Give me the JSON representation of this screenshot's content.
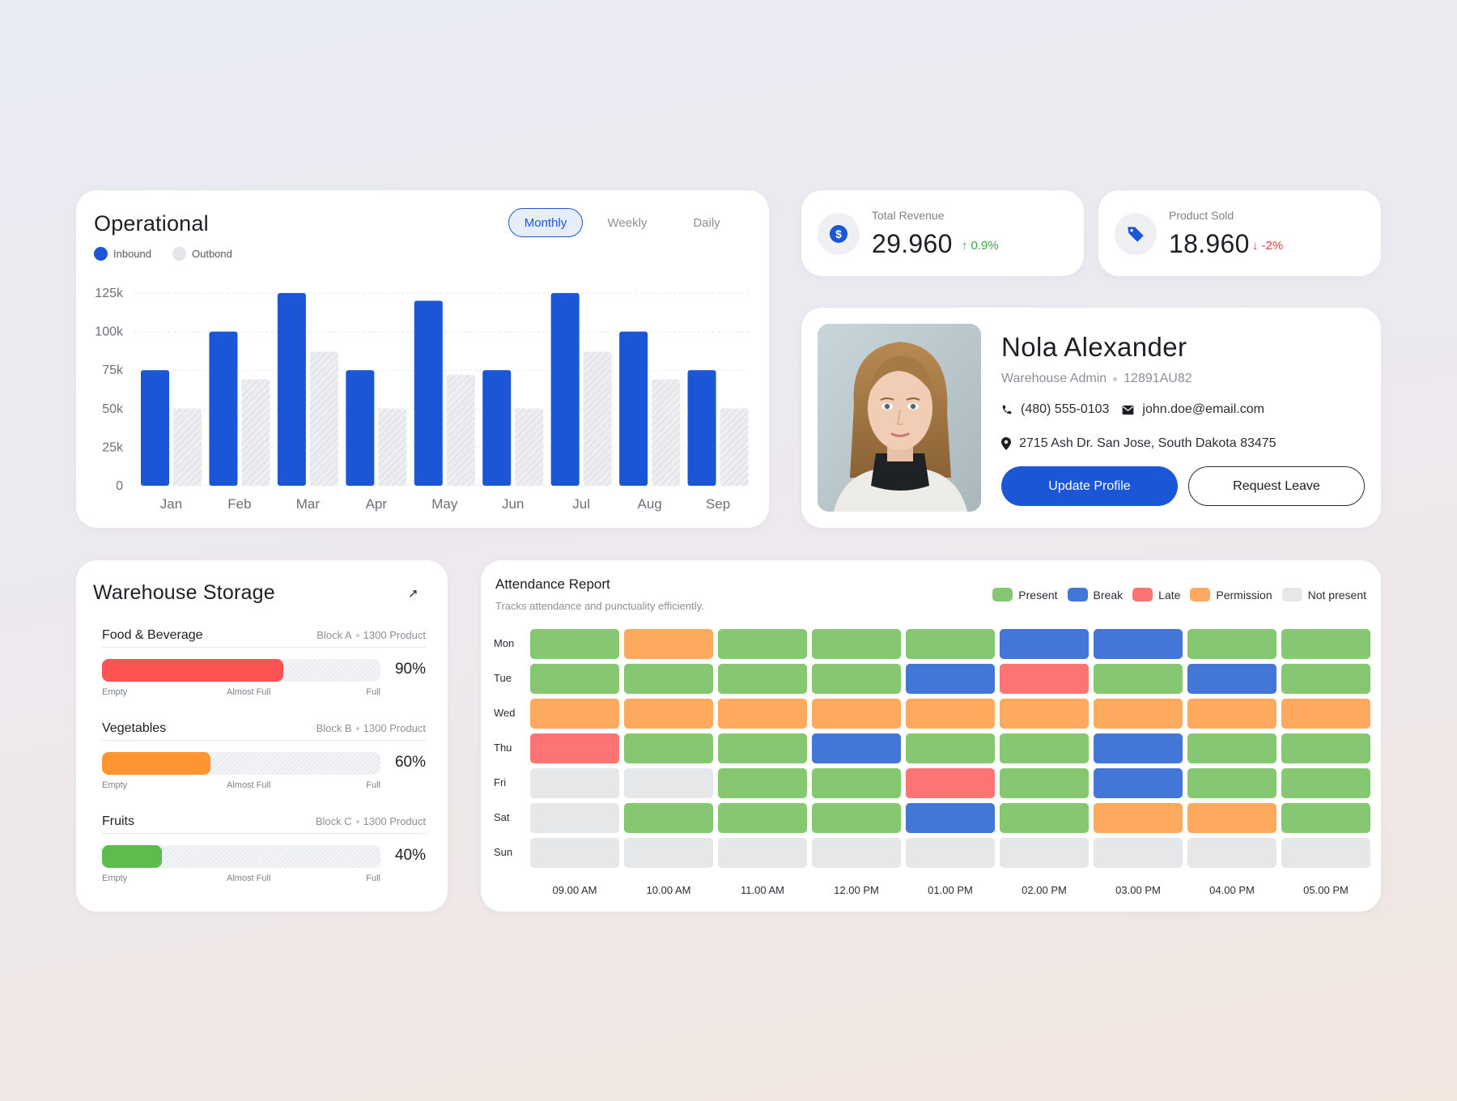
{
  "operational": {
    "title": "Operational",
    "legend": [
      {
        "label": "Inbound",
        "color": "#1a56d6"
      },
      {
        "label": "Outbond",
        "color": "#e3e5e9"
      }
    ],
    "tabs": [
      "Monthly",
      "Weekly",
      "Daily"
    ],
    "active_tab": "Monthly"
  },
  "chart_data": {
    "type": "bar",
    "categories": [
      "Jan",
      "Feb",
      "Mar",
      "Apr",
      "May",
      "Jun",
      "Jul",
      "Aug",
      "Sep"
    ],
    "series": [
      {
        "name": "Inbound",
        "values": [
          75000,
          100000,
          125000,
          75000,
          120000,
          75000,
          125000,
          100000,
          75000
        ],
        "color": "#1a56d6"
      },
      {
        "name": "Outbond",
        "values": [
          50000,
          69000,
          87000,
          50000,
          72000,
          50000,
          87000,
          69000,
          50000
        ],
        "color": "#e3e5e9"
      }
    ],
    "y_ticks": [
      "0",
      "25k",
      "50k",
      "75k",
      "100k",
      "125k"
    ],
    "ylim": [
      0,
      125000
    ],
    "grid": true,
    "legend_position": "top-left"
  },
  "stats": {
    "revenue": {
      "label": "Total Revenue",
      "value": "29.960",
      "change": "0.9%",
      "direction": "up",
      "color": "#3aa34a",
      "icon": "dollar-icon"
    },
    "sold": {
      "label": "Product Sold",
      "value": "18.960",
      "change": "-2%",
      "direction": "down",
      "color": "#e23b3b",
      "icon": "tag-icon"
    }
  },
  "profile": {
    "name": "Nola Alexander",
    "role": "Warehouse Admin",
    "id": "12891AU82",
    "phone": "(480) 555-0103",
    "email": "john.doe@email.com",
    "address": "2715 Ash Dr. San Jose, South Dakota 83475",
    "update_button": "Update Profile",
    "leave_button": "Request Leave"
  },
  "storage": {
    "title": "Warehouse Storage",
    "scale": [
      "Empty",
      "Almost Full",
      "Full"
    ],
    "items": [
      {
        "name": "Food & Beverage",
        "block": "Block A",
        "products": "1300 Product",
        "percent": 90,
        "percent_label": "90%",
        "color": "#ff5252"
      },
      {
        "name": "Vegetables",
        "block": "Block B",
        "products": "1300 Product",
        "percent": 60,
        "percent_label": "60%",
        "color": "#ff9530"
      },
      {
        "name": "Fruits",
        "block": "Block C",
        "products": "1300 Product",
        "percent": 40,
        "percent_label": "40%",
        "color": "#5cbd4c"
      }
    ]
  },
  "attendance": {
    "title": "Attendance Report",
    "subtitle": "Tracks attendance and punctuality efficiently.",
    "legend": [
      {
        "key": "P",
        "label": "Present",
        "color": "#86c872"
      },
      {
        "key": "B",
        "label": "Break",
        "color": "#4476d8"
      },
      {
        "key": "L",
        "label": "Late",
        "color": "#fe7373"
      },
      {
        "key": "M",
        "label": "Permission",
        "color": "#fdaa5e"
      },
      {
        "key": "N",
        "label": "Not present",
        "color": "#e6e7e9"
      }
    ],
    "days": [
      "Mon",
      "Tue",
      "Wed",
      "Thu",
      "Fri",
      "Sat",
      "Sun"
    ],
    "times": [
      "09.00 AM",
      "10.00 AM",
      "11.00 AM",
      "12.00 PM",
      "01.00 PM",
      "02.00 PM",
      "03.00 PM",
      "04.00 PM",
      "05.00 PM"
    ],
    "grid": [
      [
        "P",
        "M",
        "P",
        "P",
        "P",
        "B",
        "B",
        "P",
        "P"
      ],
      [
        "P",
        "P",
        "P",
        "P",
        "B",
        "L",
        "P",
        "B",
        "P"
      ],
      [
        "M",
        "M",
        "M",
        "M",
        "M",
        "M",
        "M",
        "M",
        "M"
      ],
      [
        "L",
        "P",
        "P",
        "B",
        "P",
        "P",
        "B",
        "P",
        "P"
      ],
      [
        "N",
        "N",
        "P",
        "P",
        "L",
        "P",
        "B",
        "P",
        "P"
      ],
      [
        "N",
        "P",
        "P",
        "P",
        "B",
        "P",
        "M",
        "M",
        "P"
      ],
      [
        "N",
        "N",
        "N",
        "N",
        "N",
        "N",
        "N",
        "N",
        "N"
      ]
    ]
  }
}
